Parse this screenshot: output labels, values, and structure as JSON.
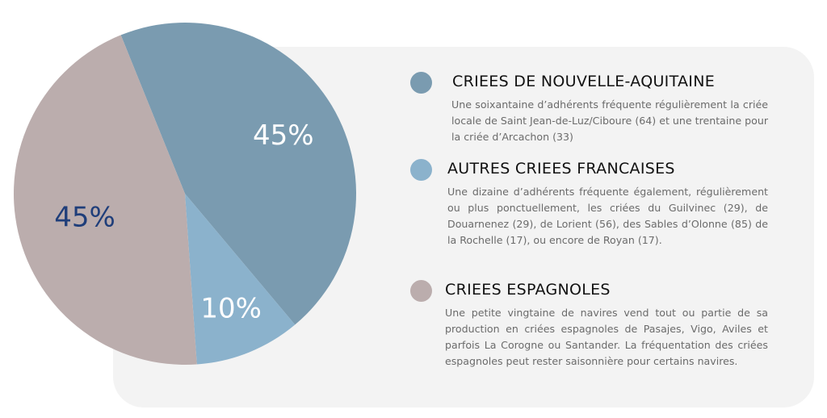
{
  "chart_data": {
    "type": "pie",
    "title": "",
    "slices": [
      {
        "label": "CRIEES DE NOUVELLE-AQUITAINE",
        "value": 45,
        "display": "45%",
        "color": "#7a9bb0",
        "label_color": "#ffffff"
      },
      {
        "label": "AUTRES CRIEES FRANCAISES",
        "value": 10,
        "display": "10%",
        "color": "#8bb2cc",
        "label_color": "#ffffff"
      },
      {
        "label": "CRIEES ESPAGNOLES",
        "value": 45,
        "display": "45%",
        "color": "#bbadad",
        "label_color": "#1f3e7a"
      }
    ],
    "legend_placement": "right"
  },
  "legend": [
    {
      "title": "CRIEES DE NOUVELLE-AQUITAINE",
      "text": "Une soixantaine d’adhérents fréquente régulièrement la criée locale de Saint Jean-de-Luz/Ciboure (64) et une trentaine pour la criée d’Arcachon (33)"
    },
    {
      "title": "AUTRES CRIEES FRANCAISES",
      "text": "Une dizaine d’adhérents fréquente également, régulièrement ou plus ponctuellement, les criées du Guilvinec (29), de Douarnenez (29), de Lorient (56), des Sables d’Olonne (85) de la Rochelle (17), ou encore de Royan (17)."
    },
    {
      "title": "CRIEES ESPAGNOLES",
      "text": "Une petite vingtaine de navires vend tout ou partie de sa production en criées espagnoles de Pasajes, Vigo, Aviles et parfois La Corogne ou Santander. La fréquentation des criées espagnoles peut rester saisonnière pour certains navires."
    }
  ]
}
